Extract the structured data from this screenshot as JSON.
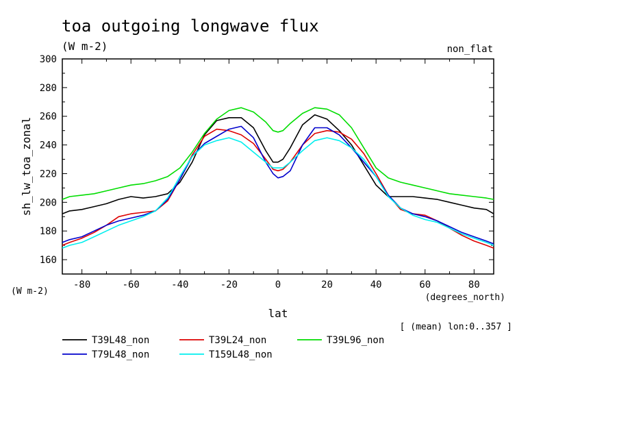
{
  "chart_data": {
    "type": "line",
    "title": "toa outgoing longwave flux",
    "units_label": "(W m-2)",
    "corner_label": "non_flat",
    "ylabel": "sh_lw_toa_zonal",
    "xlabel": "lat",
    "y_units_label": "(W m-2)",
    "x_units_label": "(degrees_north)",
    "footnote": "[ (mean) lon:0..357 ]",
    "xlim": [
      -88,
      88
    ],
    "ylim": [
      150,
      300
    ],
    "x_ticks": [
      -80,
      -60,
      -40,
      -20,
      0,
      20,
      40,
      60,
      80
    ],
    "y_ticks": [
      160,
      180,
      200,
      220,
      240,
      260,
      280,
      300
    ],
    "grid": false,
    "legend_position": "bottom",
    "series": [
      {
        "name": "T39L48_non",
        "color": "#000000",
        "x": [
          -88,
          -85,
          -80,
          -75,
          -70,
          -65,
          -60,
          -55,
          -50,
          -45,
          -40,
          -35,
          -30,
          -25,
          -20,
          -15,
          -10,
          -5,
          -2,
          0,
          2,
          5,
          10,
          15,
          20,
          25,
          30,
          35,
          40,
          45,
          50,
          55,
          60,
          65,
          70,
          75,
          80,
          85,
          88
        ],
        "y": [
          192,
          194,
          195,
          197,
          199,
          202,
          204,
          203,
          204,
          206,
          214,
          228,
          247,
          257,
          259,
          259,
          252,
          236,
          228,
          228,
          230,
          238,
          254,
          261,
          258,
          250,
          240,
          226,
          212,
          204,
          204,
          204,
          203,
          202,
          200,
          198,
          196,
          195,
          192
        ]
      },
      {
        "name": "T39L24_non",
        "color": "#dd0000",
        "x": [
          -88,
          -85,
          -80,
          -75,
          -70,
          -65,
          -60,
          -55,
          -50,
          -45,
          -40,
          -35,
          -30,
          -25,
          -20,
          -15,
          -10,
          -5,
          -2,
          0,
          2,
          5,
          10,
          15,
          20,
          25,
          30,
          35,
          40,
          45,
          50,
          55,
          60,
          65,
          70,
          75,
          80,
          85,
          88
        ],
        "y": [
          170,
          172,
          175,
          179,
          184,
          190,
          192,
          193,
          194,
          201,
          216,
          233,
          246,
          251,
          250,
          247,
          241,
          230,
          223,
          222,
          223,
          228,
          240,
          248,
          250,
          249,
          244,
          234,
          220,
          205,
          195,
          192,
          191,
          187,
          182,
          177,
          173,
          170,
          168
        ]
      },
      {
        "name": "T39L96_non",
        "color": "#00dd00",
        "x": [
          -88,
          -85,
          -80,
          -75,
          -70,
          -65,
          -60,
          -55,
          -50,
          -45,
          -40,
          -35,
          -30,
          -25,
          -20,
          -15,
          -10,
          -5,
          -2,
          0,
          2,
          5,
          10,
          15,
          20,
          25,
          30,
          35,
          40,
          45,
          50,
          55,
          60,
          65,
          70,
          75,
          80,
          85,
          88
        ],
        "y": [
          202,
          204,
          205,
          206,
          208,
          210,
          212,
          213,
          215,
          218,
          224,
          235,
          248,
          258,
          264,
          266,
          263,
          256,
          250,
          249,
          250,
          255,
          262,
          266,
          265,
          261,
          252,
          238,
          224,
          217,
          214,
          212,
          210,
          208,
          206,
          205,
          204,
          203,
          202
        ]
      },
      {
        "name": "T79L48_non",
        "color": "#0000cc",
        "x": [
          -88,
          -85,
          -80,
          -75,
          -70,
          -65,
          -60,
          -55,
          -50,
          -45,
          -40,
          -35,
          -30,
          -25,
          -20,
          -15,
          -10,
          -5,
          -2,
          0,
          2,
          5,
          10,
          15,
          20,
          25,
          30,
          35,
          40,
          45,
          50,
          55,
          60,
          65,
          70,
          75,
          80,
          85,
          88
        ],
        "y": [
          172,
          174,
          176,
          180,
          184,
          187,
          189,
          191,
          194,
          202,
          216,
          232,
          241,
          246,
          251,
          253,
          245,
          228,
          220,
          217,
          218,
          222,
          240,
          252,
          252,
          247,
          238,
          228,
          218,
          205,
          196,
          192,
          190,
          187,
          183,
          179,
          176,
          173,
          171
        ]
      },
      {
        "name": "T159L48_non",
        "color": "#00eeee",
        "x": [
          -88,
          -85,
          -80,
          -75,
          -70,
          -65,
          -60,
          -55,
          -50,
          -45,
          -40,
          -35,
          -30,
          -25,
          -20,
          -15,
          -10,
          -5,
          -2,
          0,
          2,
          5,
          10,
          15,
          20,
          25,
          30,
          35,
          40,
          45,
          50,
          55,
          60,
          65,
          70,
          75,
          80,
          85,
          88
        ],
        "y": [
          168,
          170,
          172,
          176,
          180,
          184,
          187,
          190,
          194,
          203,
          218,
          232,
          240,
          243,
          245,
          242,
          235,
          228,
          224,
          224,
          224,
          228,
          236,
          243,
          245,
          243,
          238,
          230,
          218,
          204,
          196,
          191,
          188,
          186,
          182,
          178,
          175,
          172,
          170
        ]
      }
    ]
  }
}
